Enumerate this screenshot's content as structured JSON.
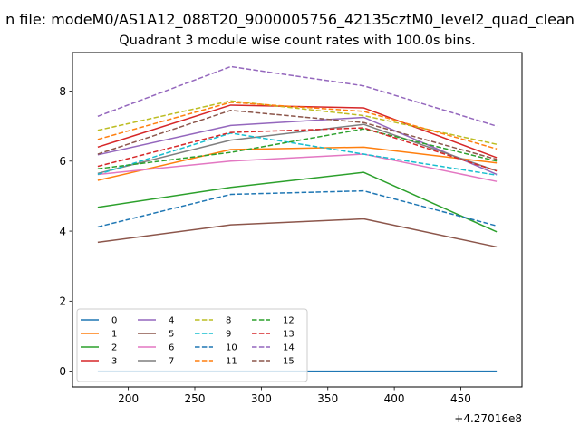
{
  "figure": {
    "suptitle": "n file: modeM0/AS1A12_088T20_9000005756_42135cztM0_level2_quad_clean",
    "title": "Quadrant 3 module wise count rates with 100.0s bins.",
    "offset_text": "+4.27016e8"
  },
  "chart_data": {
    "type": "line",
    "title": "Quadrant 3 module wise count rates with 100.0s bins.",
    "xlabel": "",
    "ylabel": "",
    "x_offset": 427016000,
    "x": [
      177,
      277,
      377,
      477
    ],
    "xlim": [
      158,
      496
    ],
    "ylim": [
      -0.45,
      9.1
    ],
    "x_ticks": [
      200,
      250,
      300,
      350,
      400,
      450
    ],
    "x_tick_labels": [
      "200",
      "250",
      "300",
      "350",
      "400",
      "450"
    ],
    "y_ticks": [
      0,
      2,
      4,
      6,
      8
    ],
    "y_tick_labels": [
      "0",
      "2",
      "4",
      "6",
      "8"
    ],
    "grid": false,
    "legend_position": "lower-left",
    "legend_columns": 4,
    "series": [
      {
        "name": "0",
        "values": [
          0,
          0,
          0,
          0
        ],
        "color": "#1f77b4",
        "dash": "solid"
      },
      {
        "name": "1",
        "values": [
          5.45,
          6.33,
          6.4,
          5.95
        ],
        "color": "#ff7f0e",
        "dash": "solid"
      },
      {
        "name": "2",
        "values": [
          4.68,
          5.25,
          5.68,
          3.98
        ],
        "color": "#2ca02c",
        "dash": "solid"
      },
      {
        "name": "3",
        "values": [
          6.4,
          7.6,
          7.52,
          6.1
        ],
        "color": "#d62728",
        "dash": "solid"
      },
      {
        "name": "4",
        "values": [
          6.18,
          7.02,
          7.25,
          5.62
        ],
        "color": "#9467bd",
        "dash": "solid"
      },
      {
        "name": "5",
        "values": [
          3.68,
          4.18,
          4.35,
          3.55
        ],
        "color": "#8c564b",
        "dash": "solid"
      },
      {
        "name": "6",
        "values": [
          5.62,
          6.0,
          6.2,
          5.42
        ],
        "color": "#e377c2",
        "dash": "solid"
      },
      {
        "name": "7",
        "values": [
          5.65,
          6.6,
          7.05,
          5.72
        ],
        "color": "#7f7f7f",
        "dash": "solid"
      },
      {
        "name": "8",
        "values": [
          6.88,
          7.72,
          7.3,
          6.48
        ],
        "color": "#bcbd22",
        "dash": "dashed"
      },
      {
        "name": "9",
        "values": [
          5.62,
          6.8,
          6.2,
          5.6
        ],
        "color": "#17becf",
        "dash": "dashed"
      },
      {
        "name": "10",
        "values": [
          4.12,
          5.05,
          5.15,
          4.15
        ],
        "color": "#1f77b4",
        "dash": "dashed"
      },
      {
        "name": "11",
        "values": [
          6.62,
          7.68,
          7.42,
          6.35
        ],
        "color": "#ff7f0e",
        "dash": "dashed"
      },
      {
        "name": "12",
        "values": [
          5.78,
          6.25,
          6.92,
          6.0
        ],
        "color": "#2ca02c",
        "dash": "dashed"
      },
      {
        "name": "13",
        "values": [
          5.85,
          6.82,
          6.95,
          5.72
        ],
        "color": "#d62728",
        "dash": "dashed"
      },
      {
        "name": "14",
        "values": [
          7.28,
          8.7,
          8.15,
          7.0
        ],
        "color": "#9467bd",
        "dash": "dashed"
      },
      {
        "name": "15",
        "values": [
          6.2,
          7.45,
          7.1,
          6.05
        ],
        "color": "#8c564b",
        "dash": "dashed"
      }
    ]
  }
}
